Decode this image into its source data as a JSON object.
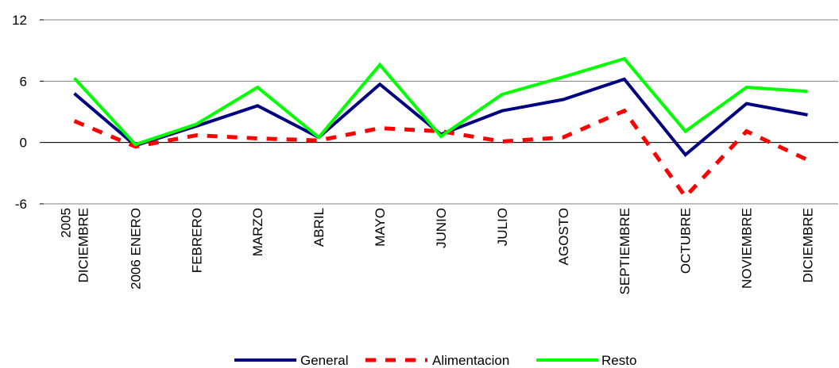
{
  "chart_data": {
    "type": "line",
    "title": "",
    "xlabel": "",
    "ylabel": "",
    "ylim": [
      -6,
      12
    ],
    "yticks": [
      "-6",
      "0",
      "6",
      "12"
    ],
    "grid": "horizontal",
    "legend_position": "bottom",
    "categories": [
      [
        "2005",
        "DICIEMBRE"
      ],
      [
        "2006 ENERO"
      ],
      [
        "FEBRERO"
      ],
      [
        "MARZO"
      ],
      [
        "ABRIL"
      ],
      [
        "MAYO"
      ],
      [
        "JUNIO"
      ],
      [
        "JULIO"
      ],
      [
        "AGOSTO"
      ],
      [
        "SEPTIEMBRE"
      ],
      [
        "OCTUBRE"
      ],
      [
        "NOVIEMBRE"
      ],
      [
        "DICIEMBRE"
      ]
    ],
    "series": [
      {
        "name": "General",
        "color": "#000080",
        "style": "solid",
        "values": [
          4.8,
          -0.3,
          1.6,
          3.6,
          0.5,
          5.7,
          0.8,
          3.1,
          4.2,
          6.2,
          -1.2,
          3.8,
          2.7
        ]
      },
      {
        "name": "Alimentacion",
        "color": "#ff0000",
        "style": "dashed",
        "values": [
          2.1,
          -0.4,
          0.7,
          0.4,
          0.2,
          1.4,
          1.1,
          0.1,
          0.5,
          3.1,
          -5.3,
          1.1,
          -1.7
        ]
      },
      {
        "name": "Resto",
        "color": "#00ff00",
        "style": "solid",
        "values": [
          6.3,
          -0.2,
          1.8,
          5.4,
          0.5,
          7.6,
          0.6,
          4.7,
          6.4,
          8.2,
          1.1,
          5.4,
          5.0
        ]
      }
    ]
  }
}
